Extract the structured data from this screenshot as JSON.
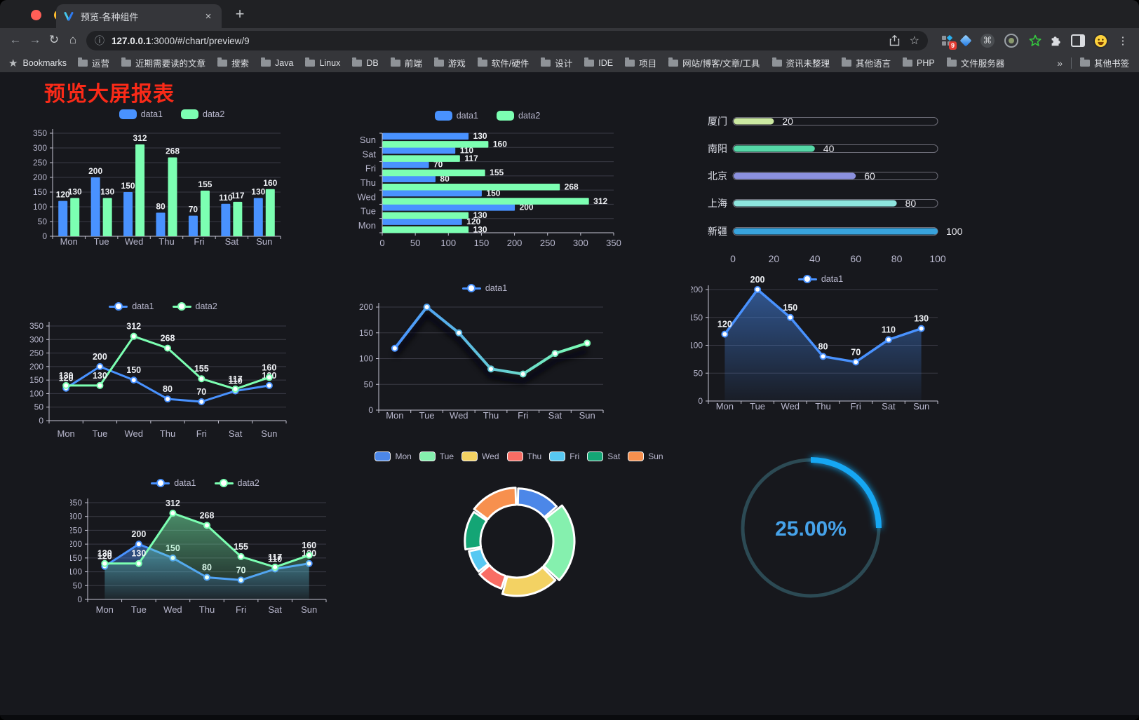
{
  "browser": {
    "tab": {
      "title": "预览-各种组件"
    },
    "url": {
      "host": "127.0.0.1",
      "rest": ":3000/#/chart/preview/9"
    },
    "extensions_badge": "9",
    "bookmarks": {
      "label": "Bookmarks",
      "folders": [
        "运营",
        "近期需要读的文章",
        "搜索",
        "Java",
        "Linux",
        "DB",
        "前端",
        "游戏",
        "软件/硬件",
        "设计",
        "IDE",
        "项目",
        "网站/博客/文章/工具",
        "资讯未整理",
        "其他语言",
        "PHP",
        "文件服务器"
      ],
      "overflow": "»",
      "other": "其他书签"
    }
  },
  "page": {
    "title": "预览大屏报表",
    "title_color": "#fa2a18"
  },
  "chart_data": [
    {
      "id": "bar-vertical",
      "type": "bar",
      "categories": [
        "Mon",
        "Tue",
        "Wed",
        "Thu",
        "Fri",
        "Sat",
        "Sun"
      ],
      "series": [
        {
          "name": "data1",
          "color": "#4992ff",
          "values": [
            120,
            200,
            150,
            80,
            70,
            110,
            130
          ]
        },
        {
          "name": "data2",
          "color": "#7cffb2",
          "values": [
            130,
            130,
            312,
            268,
            155,
            117,
            160
          ]
        }
      ],
      "ylim": [
        0,
        350
      ],
      "ystep": 50,
      "value_labels": true,
      "legend_position": "top",
      "grid": true
    },
    {
      "id": "bar-horizontal",
      "type": "bar-horizontal",
      "categories": [
        "Mon",
        "Tue",
        "Wed",
        "Thu",
        "Fri",
        "Sat",
        "Sun"
      ],
      "series": [
        {
          "name": "data1",
          "color": "#4992ff",
          "values": [
            120,
            200,
            150,
            80,
            70,
            110,
            130
          ]
        },
        {
          "name": "data2",
          "color": "#7cffb2",
          "values": [
            130,
            130,
            312,
            268,
            155,
            117,
            160
          ]
        }
      ],
      "xlim": [
        0,
        350
      ],
      "xstep": 50,
      "value_labels": true,
      "legend_position": "top",
      "grid": true
    },
    {
      "id": "city-progress",
      "type": "progress-bar",
      "categories": [
        "厦门",
        "南阳",
        "北京",
        "上海",
        "新疆"
      ],
      "values": [
        20,
        40,
        60,
        80,
        100
      ],
      "colors": [
        "#cbe9a1",
        "#55d7a7",
        "#8b90de",
        "#8ee5de",
        "#38a3dd"
      ],
      "xlim": [
        0,
        100
      ],
      "xticks": [
        0,
        20,
        40,
        60,
        80,
        100
      ]
    },
    {
      "id": "line-two-series",
      "type": "line",
      "categories": [
        "Mon",
        "Tue",
        "Wed",
        "Thu",
        "Fri",
        "Sat",
        "Sun"
      ],
      "series": [
        {
          "name": "data1",
          "color": "#4992ff",
          "values": [
            120,
            200,
            150,
            80,
            70,
            110,
            130
          ]
        },
        {
          "name": "data2",
          "color": "#7cffb2",
          "values": [
            130,
            130,
            312,
            268,
            155,
            117,
            160
          ]
        }
      ],
      "ylim": [
        0,
        350
      ],
      "ystep": 50,
      "value_labels": true,
      "legend_position": "top",
      "grid": true
    },
    {
      "id": "line-gradient",
      "type": "line",
      "categories": [
        "Mon",
        "Tue",
        "Wed",
        "Thu",
        "Fri",
        "Sat",
        "Sun"
      ],
      "series": [
        {
          "name": "data1",
          "gradient": [
            "#4992ff",
            "#7cffb2"
          ],
          "values": [
            120,
            200,
            150,
            80,
            70,
            110,
            130
          ]
        }
      ],
      "ylim": [
        0,
        200
      ],
      "ystep": 50,
      "value_labels": false,
      "shadow": true,
      "lineWidth": 4,
      "legend_position": "top",
      "grid": true
    },
    {
      "id": "area-single",
      "type": "line",
      "categories": [
        "Mon",
        "Tue",
        "Wed",
        "Thu",
        "Fri",
        "Sat",
        "Sun"
      ],
      "series": [
        {
          "name": "data1",
          "color": "#4992ff",
          "area": true,
          "values": [
            120,
            200,
            150,
            80,
            70,
            110,
            130
          ]
        }
      ],
      "ylim": [
        0,
        200
      ],
      "ystep": 50,
      "value_labels": true,
      "lineWidth": 3.5,
      "legend_position": "top",
      "grid": true
    },
    {
      "id": "area-two-series",
      "type": "line",
      "categories": [
        "Mon",
        "Tue",
        "Wed",
        "Thu",
        "Fri",
        "Sat",
        "Sun"
      ],
      "series": [
        {
          "name": "data1",
          "color": "#4992ff",
          "area": true,
          "values": [
            120,
            200,
            150,
            80,
            70,
            110,
            130
          ]
        },
        {
          "name": "data2",
          "color": "#7cffb2",
          "area": true,
          "values": [
            130,
            130,
            312,
            268,
            155,
            117,
            160
          ]
        }
      ],
      "ylim": [
        0,
        350
      ],
      "ystep": 50,
      "value_labels": true,
      "legend_position": "top",
      "grid": true
    },
    {
      "id": "rose-pie",
      "type": "pie",
      "categories": [
        "Mon",
        "Tue",
        "Wed",
        "Thu",
        "Fri",
        "Sat",
        "Sun"
      ],
      "values": [
        120,
        200,
        150,
        80,
        70,
        110,
        130
      ],
      "colors": [
        "#4c87e8",
        "#85f0ae",
        "#f3d263",
        "#f96d64",
        "#57c8f2",
        "#14a575",
        "#f7904e"
      ],
      "legend_position": "top"
    },
    {
      "id": "gauge",
      "type": "gauge",
      "percent": 25,
      "label": "25.00%",
      "color": "#18a7f3",
      "track_color": "#2c4a54",
      "text_color": "#46a2e9"
    }
  ]
}
